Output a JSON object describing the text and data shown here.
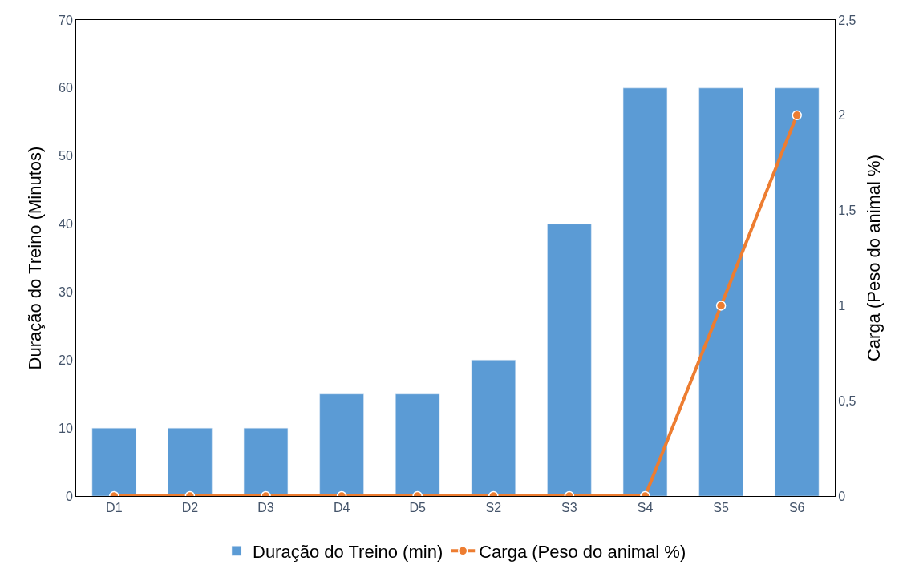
{
  "chart_data": {
    "type": "bar",
    "categories": [
      "D1",
      "D2",
      "D3",
      "D4",
      "D5",
      "S2",
      "S3",
      "S4",
      "S5",
      "S6"
    ],
    "series": [
      {
        "name": "Duração do Treino (min)",
        "color": "#5b9bd5",
        "values": [
          10,
          10,
          10,
          15,
          15,
          20,
          40,
          60,
          60,
          60
        ]
      },
      {
        "name": "Carga (Peso do animal %)",
        "type": "line",
        "axis": "y2",
        "color": "#ed7d31",
        "values": [
          0,
          0,
          0,
          0,
          0,
          0,
          0,
          0,
          1,
          2
        ]
      }
    ],
    "ylabel": "Duração do Treino (Minutos)",
    "y2label": "Carga (Peso do animal %)",
    "ylim": [
      0,
      70
    ],
    "yticks": [
      0,
      10,
      20,
      30,
      40,
      50,
      60,
      70
    ],
    "y2lim": [
      0,
      2.5
    ],
    "y2ticks": [
      0,
      {
        "value": 0.5,
        "label": "0,5"
      },
      1,
      {
        "value": 1.5,
        "label": "1,5"
      },
      2,
      {
        "value": 2.5,
        "label": "2,5"
      }
    ],
    "marker": "circle",
    "line_style": "solid",
    "legend": "bottom"
  }
}
